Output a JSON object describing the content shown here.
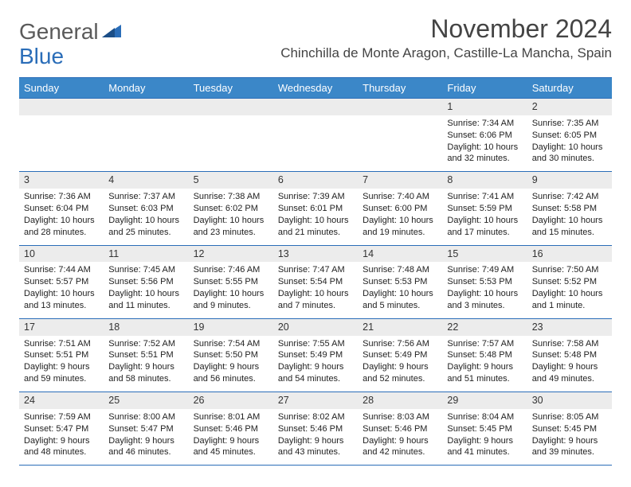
{
  "logo": {
    "part1": "General",
    "part2": "Blue"
  },
  "title": "November 2024",
  "location": "Chinchilla de Monte Aragon, Castille-La Mancha, Spain",
  "day_headers": [
    "Sunday",
    "Monday",
    "Tuesday",
    "Wednesday",
    "Thursday",
    "Friday",
    "Saturday"
  ],
  "colors": {
    "header_bg": "#3b87c8",
    "border": "#2a6db8",
    "daynum_bg": "#ececec"
  },
  "weeks": [
    [
      {
        "n": "",
        "lines": []
      },
      {
        "n": "",
        "lines": []
      },
      {
        "n": "",
        "lines": []
      },
      {
        "n": "",
        "lines": []
      },
      {
        "n": "",
        "lines": []
      },
      {
        "n": "1",
        "lines": [
          "Sunrise: 7:34 AM",
          "Sunset: 6:06 PM",
          "Daylight: 10 hours and 32 minutes."
        ]
      },
      {
        "n": "2",
        "lines": [
          "Sunrise: 7:35 AM",
          "Sunset: 6:05 PM",
          "Daylight: 10 hours and 30 minutes."
        ]
      }
    ],
    [
      {
        "n": "3",
        "lines": [
          "Sunrise: 7:36 AM",
          "Sunset: 6:04 PM",
          "Daylight: 10 hours and 28 minutes."
        ]
      },
      {
        "n": "4",
        "lines": [
          "Sunrise: 7:37 AM",
          "Sunset: 6:03 PM",
          "Daylight: 10 hours and 25 minutes."
        ]
      },
      {
        "n": "5",
        "lines": [
          "Sunrise: 7:38 AM",
          "Sunset: 6:02 PM",
          "Daylight: 10 hours and 23 minutes."
        ]
      },
      {
        "n": "6",
        "lines": [
          "Sunrise: 7:39 AM",
          "Sunset: 6:01 PM",
          "Daylight: 10 hours and 21 minutes."
        ]
      },
      {
        "n": "7",
        "lines": [
          "Sunrise: 7:40 AM",
          "Sunset: 6:00 PM",
          "Daylight: 10 hours and 19 minutes."
        ]
      },
      {
        "n": "8",
        "lines": [
          "Sunrise: 7:41 AM",
          "Sunset: 5:59 PM",
          "Daylight: 10 hours and 17 minutes."
        ]
      },
      {
        "n": "9",
        "lines": [
          "Sunrise: 7:42 AM",
          "Sunset: 5:58 PM",
          "Daylight: 10 hours and 15 minutes."
        ]
      }
    ],
    [
      {
        "n": "10",
        "lines": [
          "Sunrise: 7:44 AM",
          "Sunset: 5:57 PM",
          "Daylight: 10 hours and 13 minutes."
        ]
      },
      {
        "n": "11",
        "lines": [
          "Sunrise: 7:45 AM",
          "Sunset: 5:56 PM",
          "Daylight: 10 hours and 11 minutes."
        ]
      },
      {
        "n": "12",
        "lines": [
          "Sunrise: 7:46 AM",
          "Sunset: 5:55 PM",
          "Daylight: 10 hours and 9 minutes."
        ]
      },
      {
        "n": "13",
        "lines": [
          "Sunrise: 7:47 AM",
          "Sunset: 5:54 PM",
          "Daylight: 10 hours and 7 minutes."
        ]
      },
      {
        "n": "14",
        "lines": [
          "Sunrise: 7:48 AM",
          "Sunset: 5:53 PM",
          "Daylight: 10 hours and 5 minutes."
        ]
      },
      {
        "n": "15",
        "lines": [
          "Sunrise: 7:49 AM",
          "Sunset: 5:53 PM",
          "Daylight: 10 hours and 3 minutes."
        ]
      },
      {
        "n": "16",
        "lines": [
          "Sunrise: 7:50 AM",
          "Sunset: 5:52 PM",
          "Daylight: 10 hours and 1 minute."
        ]
      }
    ],
    [
      {
        "n": "17",
        "lines": [
          "Sunrise: 7:51 AM",
          "Sunset: 5:51 PM",
          "Daylight: 9 hours and 59 minutes."
        ]
      },
      {
        "n": "18",
        "lines": [
          "Sunrise: 7:52 AM",
          "Sunset: 5:51 PM",
          "Daylight: 9 hours and 58 minutes."
        ]
      },
      {
        "n": "19",
        "lines": [
          "Sunrise: 7:54 AM",
          "Sunset: 5:50 PM",
          "Daylight: 9 hours and 56 minutes."
        ]
      },
      {
        "n": "20",
        "lines": [
          "Sunrise: 7:55 AM",
          "Sunset: 5:49 PM",
          "Daylight: 9 hours and 54 minutes."
        ]
      },
      {
        "n": "21",
        "lines": [
          "Sunrise: 7:56 AM",
          "Sunset: 5:49 PM",
          "Daylight: 9 hours and 52 minutes."
        ]
      },
      {
        "n": "22",
        "lines": [
          "Sunrise: 7:57 AM",
          "Sunset: 5:48 PM",
          "Daylight: 9 hours and 51 minutes."
        ]
      },
      {
        "n": "23",
        "lines": [
          "Sunrise: 7:58 AM",
          "Sunset: 5:48 PM",
          "Daylight: 9 hours and 49 minutes."
        ]
      }
    ],
    [
      {
        "n": "24",
        "lines": [
          "Sunrise: 7:59 AM",
          "Sunset: 5:47 PM",
          "Daylight: 9 hours and 48 minutes."
        ]
      },
      {
        "n": "25",
        "lines": [
          "Sunrise: 8:00 AM",
          "Sunset: 5:47 PM",
          "Daylight: 9 hours and 46 minutes."
        ]
      },
      {
        "n": "26",
        "lines": [
          "Sunrise: 8:01 AM",
          "Sunset: 5:46 PM",
          "Daylight: 9 hours and 45 minutes."
        ]
      },
      {
        "n": "27",
        "lines": [
          "Sunrise: 8:02 AM",
          "Sunset: 5:46 PM",
          "Daylight: 9 hours and 43 minutes."
        ]
      },
      {
        "n": "28",
        "lines": [
          "Sunrise: 8:03 AM",
          "Sunset: 5:46 PM",
          "Daylight: 9 hours and 42 minutes."
        ]
      },
      {
        "n": "29",
        "lines": [
          "Sunrise: 8:04 AM",
          "Sunset: 5:45 PM",
          "Daylight: 9 hours and 41 minutes."
        ]
      },
      {
        "n": "30",
        "lines": [
          "Sunrise: 8:05 AM",
          "Sunset: 5:45 PM",
          "Daylight: 9 hours and 39 minutes."
        ]
      }
    ]
  ]
}
